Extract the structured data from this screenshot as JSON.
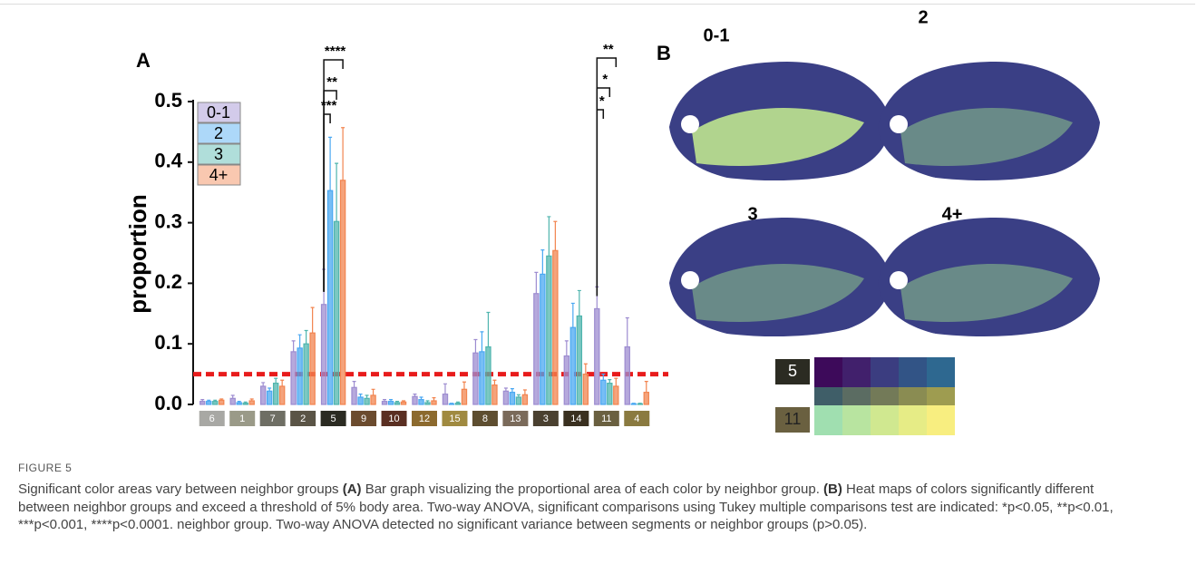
{
  "chart_data": {
    "type": "bar",
    "panel_label": "A",
    "ylabel": "proportion",
    "categories": [
      "6",
      "1",
      "7",
      "2",
      "5",
      "9",
      "10",
      "12",
      "15",
      "8",
      "13",
      "3",
      "14",
      "11",
      "4"
    ],
    "category_colors": [
      "#a8a8a4",
      "#9a9a88",
      "#6e6e64",
      "#5a5446",
      "#2b2b22",
      "#6b4b2e",
      "#5a2f22",
      "#8c6a2e",
      "#a08a40",
      "#5e4e30",
      "#7a6a5a",
      "#4a4030",
      "#3a3020",
      "#6a6040",
      "#8a7a40"
    ],
    "series": [
      {
        "name": "0-1",
        "color": "#9d8cd0",
        "values": [
          0.005,
          0.01,
          0.03,
          0.087,
          0.165,
          0.028,
          0.005,
          0.013,
          0.017,
          0.085,
          0.022,
          0.183,
          0.08,
          0.158,
          0.095
        ],
        "errors": [
          0.003,
          0.005,
          0.006,
          0.018,
          0.058,
          0.01,
          0.003,
          0.004,
          0.017,
          0.022,
          0.005,
          0.035,
          0.025,
          0.036,
          0.048
        ]
      },
      {
        "name": "2",
        "color": "#4aa8f2",
        "values": [
          0.005,
          0.003,
          0.022,
          0.093,
          0.353,
          0.012,
          0.005,
          0.008,
          0.001,
          0.087,
          0.02,
          0.215,
          0.127,
          0.04,
          0.001
        ],
        "errors": [
          0.002,
          0.002,
          0.005,
          0.022,
          0.088,
          0.005,
          0.003,
          0.004,
          0.001,
          0.033,
          0.006,
          0.04,
          0.04,
          0.01,
          0.001
        ]
      },
      {
        "name": "3",
        "color": "#4fb5ae",
        "values": [
          0.005,
          0.002,
          0.035,
          0.1,
          0.302,
          0.01,
          0.003,
          0.003,
          0.002,
          0.095,
          0.012,
          0.245,
          0.146,
          0.035,
          0.001
        ],
        "errors": [
          0.002,
          0.002,
          0.008,
          0.022,
          0.096,
          0.005,
          0.002,
          0.003,
          0.002,
          0.057,
          0.004,
          0.065,
          0.042,
          0.006,
          0.001
        ]
      },
      {
        "name": "4+",
        "color": "#f2844f",
        "values": [
          0.007,
          0.006,
          0.03,
          0.118,
          0.37,
          0.015,
          0.004,
          0.006,
          0.025,
          0.032,
          0.016,
          0.254,
          0.05,
          0.03,
          0.02
        ],
        "errors": [
          0.002,
          0.003,
          0.01,
          0.042,
          0.087,
          0.01,
          0.002,
          0.005,
          0.012,
          0.008,
          0.008,
          0.048,
          0.017,
          0.013,
          0.018
        ]
      }
    ],
    "ylim": [
      0,
      0.5
    ],
    "yticks": [
      {
        "value": 0,
        "label": "0.0"
      },
      0.1,
      0.2,
      0.3,
      0.4,
      0.5
    ],
    "threshold": 0.05,
    "threshold_color": "#e81c1c",
    "annotations": [
      "****",
      "**",
      "***",
      "**",
      "*",
      "*"
    ]
  },
  "panel_b": {
    "label": "B",
    "maps": [
      "0-1",
      "2",
      "3",
      "4+"
    ],
    "legend_labels": [
      "5",
      "11"
    ]
  },
  "figure_label": "FIGURE 5",
  "caption": [
    "Significant color areas vary between neighbor groups ",
    "(A)",
    " Bar graph visualizing the proportional area of each color by neighbor group. ",
    "(B)",
    " Heat maps of colors significantly different between neighbor groups and exceed a threshold of 5% body area. Two-way ANOVA, significant comparisons using Tukey multiple comparisons test are indicated: *p<0.05, **p<0.01, ***p<0.001, ****p<0.0001. neighbor group. Two-way ANOVA detected no significant variance between segments or neighbor groups (p>0.05)."
  ]
}
